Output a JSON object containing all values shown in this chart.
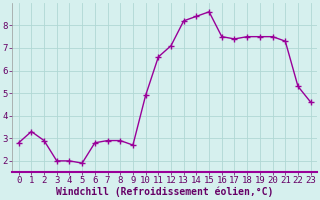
{
  "x": [
    0,
    1,
    2,
    3,
    4,
    5,
    6,
    7,
    8,
    9,
    10,
    11,
    12,
    13,
    14,
    15,
    16,
    17,
    18,
    19,
    20,
    21,
    22,
    23
  ],
  "y": [
    2.8,
    3.3,
    2.9,
    2.0,
    2.0,
    1.9,
    2.8,
    2.9,
    2.9,
    2.7,
    4.9,
    6.6,
    7.1,
    8.2,
    8.4,
    8.6,
    7.5,
    7.4,
    7.5,
    7.5,
    7.5,
    7.3,
    5.3,
    4.6
  ],
  "line_color": "#990099",
  "marker": "+",
  "marker_size": 4,
  "marker_color": "#990099",
  "xlabel": "Windchill (Refroidissement éolien,°C)",
  "xlabel_fontsize": 7,
  "background_color": "#d6f0ee",
  "plot_bg_color": "#d6f0ee",
  "grid_color": "#b0d8d4",
  "axis_line_color": "#990099",
  "xlim_min": -0.5,
  "xlim_max": 23.5,
  "ylim_min": 1.5,
  "ylim_max": 9.0,
  "yticks": [
    2,
    3,
    4,
    5,
    6,
    7,
    8
  ],
  "xticks": [
    0,
    1,
    2,
    3,
    4,
    5,
    6,
    7,
    8,
    9,
    10,
    11,
    12,
    13,
    14,
    15,
    16,
    17,
    18,
    19,
    20,
    21,
    22,
    23
  ],
  "tick_fontsize": 6.5,
  "line_width": 1.0
}
